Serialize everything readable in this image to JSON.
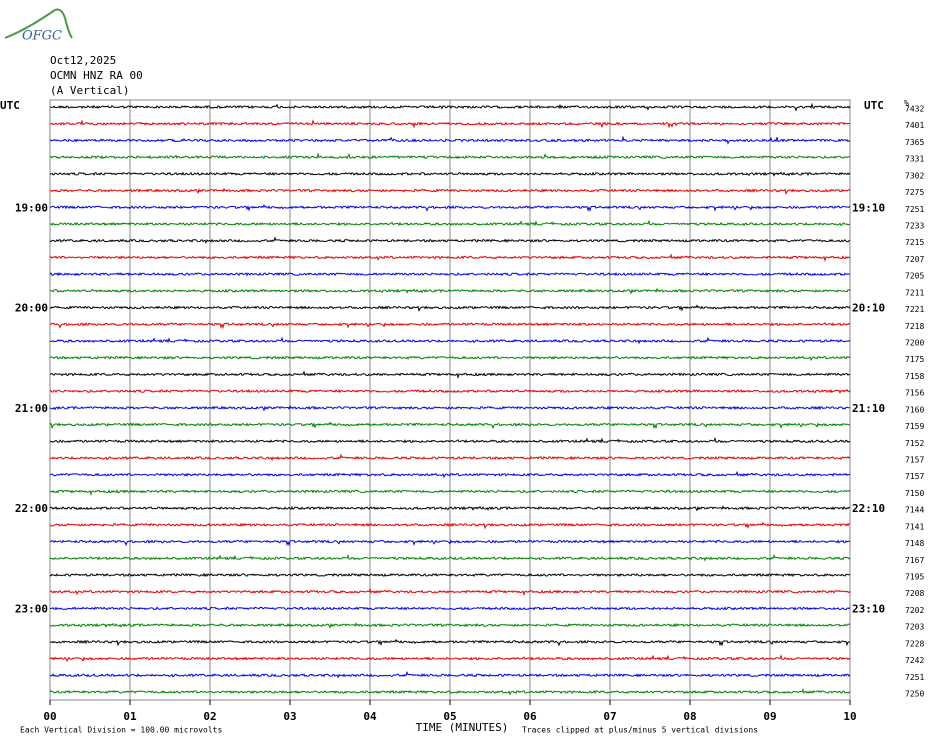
{
  "logo": "OFGC",
  "chart_data": {
    "type": "helicorder",
    "title_lines": [
      "Oct12,2025",
      "OCMN HNZ RA 00",
      "(A Vertical)"
    ],
    "left_header": "UTC",
    "right_header": "UTC",
    "scale_header": "%",
    "xlabel": "TIME (MINUTES)",
    "xlim": [
      0,
      10
    ],
    "xticks": [
      {
        "value": 0,
        "label": "00"
      },
      {
        "value": 1,
        "label": "01"
      },
      {
        "value": 2,
        "label": "02"
      },
      {
        "value": 3,
        "label": "03"
      },
      {
        "value": 4,
        "label": "04"
      },
      {
        "value": 5,
        "label": "05"
      },
      {
        "value": 6,
        "label": "06"
      },
      {
        "value": 7,
        "label": "07"
      },
      {
        "value": 8,
        "label": "08"
      },
      {
        "value": 9,
        "label": "09"
      },
      {
        "value": 10,
        "label": "10"
      }
    ],
    "grid": true,
    "trace_colors": [
      "#000000",
      "#e00000",
      "#0000e0",
      "#008000"
    ],
    "left_labels": [
      null,
      null,
      null,
      null,
      null,
      null,
      "19:00",
      null,
      null,
      null,
      null,
      null,
      "20:00",
      null,
      null,
      null,
      null,
      null,
      "21:00",
      null,
      null,
      null,
      null,
      null,
      "22:00",
      null,
      null,
      null,
      null,
      null,
      "23:00",
      null,
      null,
      null,
      null,
      null
    ],
    "right_labels": [
      null,
      null,
      null,
      null,
      null,
      null,
      "19:10",
      null,
      null,
      null,
      null,
      null,
      "20:10",
      null,
      null,
      null,
      null,
      null,
      "21:10",
      null,
      null,
      null,
      null,
      null,
      "22:10",
      null,
      null,
      null,
      null,
      null,
      "23:10",
      null,
      null,
      null,
      null,
      null
    ],
    "scale_labels": [
      "7432",
      "7401",
      "7365",
      "7331",
      "7302",
      "7275",
      "7251",
      "7233",
      "7215",
      "7207",
      "7205",
      "7211",
      "7221",
      "7218",
      "7200",
      "7175",
      "7158",
      "7156",
      "7160",
      "7159",
      "7152",
      "7157",
      "7157",
      "7150",
      "7144",
      "7141",
      "7148",
      "7167",
      "7195",
      "7208",
      "7202",
      "7203",
      "7228",
      "7242",
      "7251",
      "7250"
    ],
    "footer_left": "Each Vertical Division =  100.00 microvolts",
    "footer_right": "Traces clipped at plus/minus 5 vertical divisions"
  }
}
